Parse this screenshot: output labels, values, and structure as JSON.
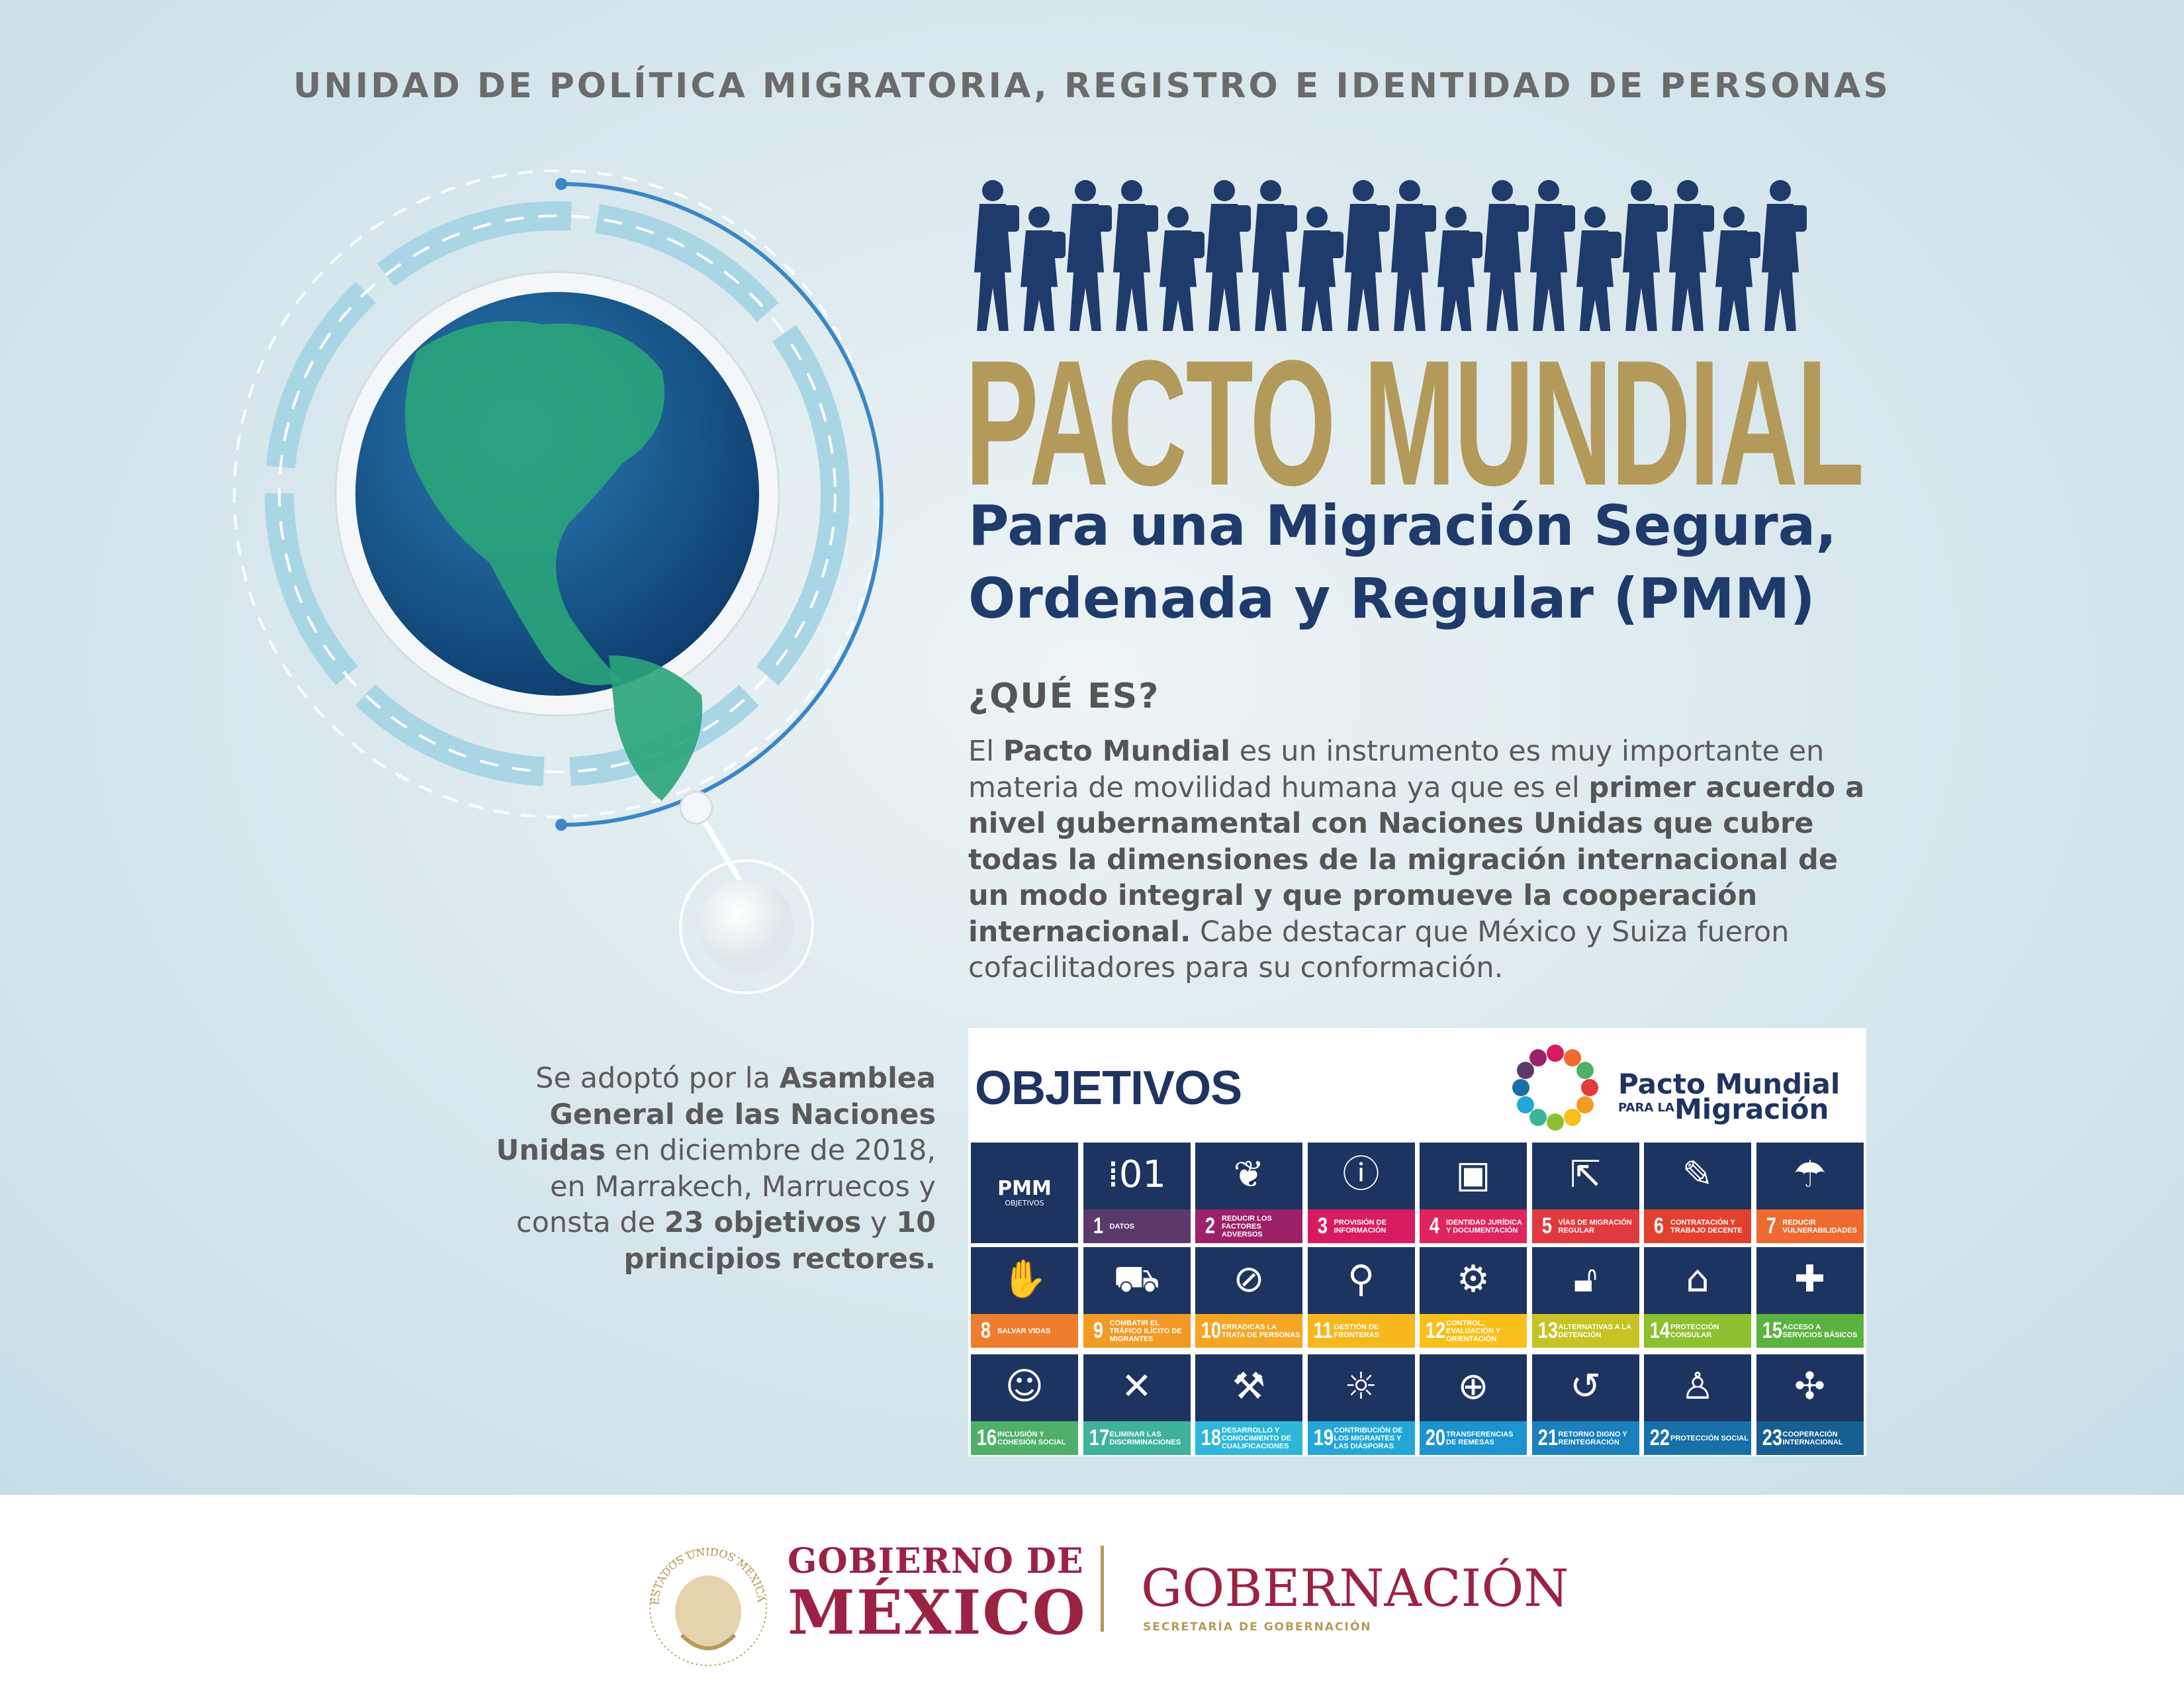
{
  "header": "UNIDAD DE POLÍTICA MIGRATORIA, REGISTRO E IDENTIDAD DE PERSONAS",
  "title": "PACTO MUNDIAL",
  "subtitle_line1": "Para una Migración Segura,",
  "subtitle_line2": "Ordenada y Regular (PMM)",
  "que_es": {
    "heading": "¿QUÉ ES?",
    "segments": [
      {
        "t": "El ",
        "b": false
      },
      {
        "t": "Pacto Mundial",
        "b": true
      },
      {
        "t": " es un instrumento es muy importante en materia de movilidad humana ya que es el ",
        "b": false
      },
      {
        "t": "primer acuerdo a nivel gubernamental con Naciones Unidas que cubre todas la dimensiones de la migración internacional de un modo integral y que promueve la cooperación internacional.",
        "b": true
      },
      {
        "t": " Cabe destacar que México y Suiza fueron cofacilitadores para su conformación.",
        "b": false
      }
    ]
  },
  "adoption": {
    "segments": [
      {
        "t": "Se adoptó por la ",
        "b": false
      },
      {
        "t": "Asamblea General de las Naciones Unidas",
        "b": true
      },
      {
        "t": " en diciembre de 2018, en Marrakech, Marruecos y consta de ",
        "b": false
      },
      {
        "t": "23 objetivos",
        "b": true
      },
      {
        "t": " y ",
        "b": false
      },
      {
        "t": "10 principios rectores.",
        "b": true
      }
    ]
  },
  "objetivos": {
    "title": "OBJETIVOS",
    "logo": {
      "line1": "Pacto Mundial",
      "line2a": "PARA LA",
      "line2b": "Migración"
    },
    "pmm_tile": {
      "a": "PMM",
      "b": "OBJETIVOS"
    },
    "tile_color": "#1d3461",
    "items": [
      {
        "n": "1",
        "label": "Datos",
        "color": "#5b3a6b",
        "icon": "binary-data-icon",
        "glyph": "⁞01"
      },
      {
        "n": "2",
        "label": "Reducir los factores adversos",
        "color": "#9c2169",
        "icon": "bare-tree-icon",
        "glyph": "❦"
      },
      {
        "n": "3",
        "label": "Provisión de información",
        "color": "#d81b60",
        "icon": "information-icon",
        "glyph": "ⓘ"
      },
      {
        "n": "4",
        "label": "Identidad jurídica y documentación",
        "color": "#e0245e",
        "icon": "id-card-icon",
        "glyph": "▣"
      },
      {
        "n": "5",
        "label": "Vías de migración regular",
        "color": "#e03a3e",
        "icon": "routes-arrows-icon",
        "glyph": "⇱"
      },
      {
        "n": "6",
        "label": "Contratación y trabajo decente",
        "color": "#e2402f",
        "icon": "contract-icon",
        "glyph": "✎"
      },
      {
        "n": "7",
        "label": "Reducir vulnerabilidades",
        "color": "#ee6a2e",
        "icon": "protecting-hands-icon",
        "glyph": "☂"
      },
      {
        "n": "8",
        "label": "Salvar vidas",
        "color": "#ef7d2e",
        "icon": "helping-hands-icon",
        "glyph": "✋"
      },
      {
        "n": "9",
        "label": "Combatir el tráfico ilícito de migrantes",
        "color": "#f29a24",
        "icon": "truck-icon",
        "glyph": "⛟"
      },
      {
        "n": "10",
        "label": "Erradicas la trata de personas",
        "color": "#f5a623",
        "icon": "prohibited-person-icon",
        "glyph": "⊘"
      },
      {
        "n": "11",
        "label": "Gestión de fronteras",
        "color": "#f7b71d",
        "icon": "stamp-icon",
        "glyph": "⚲"
      },
      {
        "n": "12",
        "label": "Control, evaluación y orientación",
        "color": "#f9c01a",
        "icon": "gear-icon",
        "glyph": "⚙"
      },
      {
        "n": "13",
        "label": "Alternativas a la detención",
        "color": "#c5c424",
        "icon": "open-lock-icon",
        "glyph": "🔓︎"
      },
      {
        "n": "14",
        "label": "Protección consular",
        "color": "#8dc02f",
        "icon": "consulate-building-icon",
        "glyph": "⌂"
      },
      {
        "n": "15",
        "label": "Acceso a servicios básicos",
        "color": "#5bb33f",
        "icon": "health-key-icon",
        "glyph": "✚"
      },
      {
        "n": "16",
        "label": "Inclusión y cohesión social",
        "color": "#4fb06a",
        "icon": "people-group-icon",
        "glyph": "☺"
      },
      {
        "n": "17",
        "label": "Eliminar las discriminaciones",
        "color": "#3fb39a",
        "icon": "handshake-icon",
        "glyph": "✕"
      },
      {
        "n": "18",
        "label": "Desarrollo y conocimiento de cualificaciones",
        "color": "#2db8d8",
        "icon": "skills-wrench-icon",
        "glyph": "⚒"
      },
      {
        "n": "19",
        "label": "Contribución de los migrantes y las diásporas",
        "color": "#22a7d8",
        "icon": "lightbulb-icon",
        "glyph": "☼"
      },
      {
        "n": "20",
        "label": "Transferencias de remesas",
        "color": "#1c94cf",
        "icon": "globe-money-icon",
        "glyph": "⊕"
      },
      {
        "n": "21",
        "label": "Retorno digno y reintegración",
        "color": "#1a80be",
        "icon": "return-blocks-icon",
        "glyph": "↺"
      },
      {
        "n": "22",
        "label": "Protección social",
        "color": "#1770a8",
        "icon": "protected-person-icon",
        "glyph": "♙"
      },
      {
        "n": "23",
        "label": "Cooperación internacional",
        "color": "#175f92",
        "icon": "puzzle-globe-icon",
        "glyph": "✣"
      }
    ]
  },
  "footer": {
    "gob_line1": "GOBIERNO DE",
    "gob_line2": "MÉXICO",
    "dept": "GOBERNACIÓN",
    "dept_sub": "SECRETARÍA DE GOBERNACIÓN",
    "seal_text": "ESTADOS UNIDOS MEXICANOS"
  },
  "colors": {
    "gold": "#b49a5a",
    "navy": "#1f3b6c",
    "maroon": "#9c2243"
  }
}
